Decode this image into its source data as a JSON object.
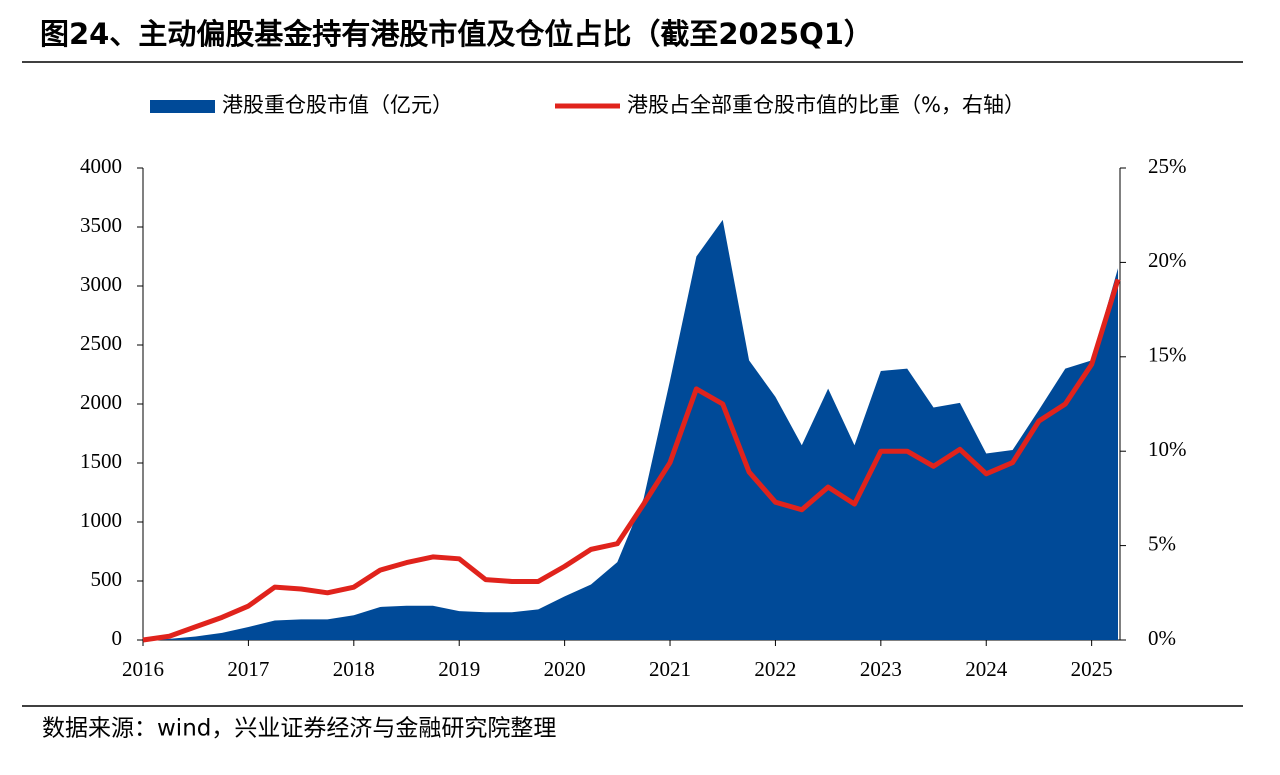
{
  "chart_data": {
    "type": "area-line",
    "title": "图24、主动偏股基金持有港股市值及仓位占比（截至2025Q1）",
    "source": "数据来源：wind，兴业证券经济与金融研究院整理",
    "x": [
      2016,
      2016.25,
      2016.5,
      2016.75,
      2017,
      2017.25,
      2017.5,
      2017.75,
      2018,
      2018.25,
      2018.5,
      2018.75,
      2019,
      2019.25,
      2019.5,
      2019.75,
      2020,
      2020.25,
      2020.5,
      2020.75,
      2021,
      2021.25,
      2021.5,
      2021.75,
      2022,
      2022.25,
      2022.5,
      2022.75,
      2023,
      2023.25,
      2023.5,
      2023.75,
      2024,
      2024.25,
      2024.5,
      2024.75,
      2025,
      2025.25
    ],
    "xlim": [
      2016,
      2025.25
    ],
    "xticks": [
      2016,
      2017,
      2018,
      2019,
      2020,
      2021,
      2022,
      2023,
      2024,
      2025
    ],
    "series": [
      {
        "name": "港股重仓股市值（亿元）",
        "color": "#004a98",
        "kind": "area",
        "values": [
          0,
          10,
          30,
          60,
          110,
          165,
          175,
          175,
          210,
          280,
          290,
          290,
          245,
          235,
          235,
          260,
          370,
          470,
          660,
          1200,
          2200,
          3250,
          3560,
          2370,
          2060,
          1650,
          2130,
          1650,
          2280,
          2300,
          1970,
          2010,
          1580,
          1610,
          1950,
          2300,
          2370,
          3150
        ]
      },
      {
        "name": "港股占全部重仓股市值的比重（%，右轴）",
        "color": "#e0231c",
        "kind": "line",
        "axis": "y2",
        "values": [
          0,
          0.2,
          0.7,
          1.2,
          1.8,
          2.8,
          2.7,
          2.5,
          2.8,
          3.7,
          4.1,
          4.4,
          4.3,
          3.2,
          3.1,
          3.1,
          3.9,
          4.8,
          5.1,
          7.2,
          9.4,
          13.3,
          12.5,
          8.9,
          7.3,
          6.9,
          8.1,
          7.2,
          10.0,
          10.0,
          9.2,
          10.1,
          8.8,
          9.4,
          11.6,
          12.5,
          14.6,
          19.1
        ]
      }
    ],
    "ylim": [
      0,
      4000
    ],
    "yticks": [
      0,
      500,
      1000,
      1500,
      2000,
      2500,
      3000,
      3500,
      4000
    ],
    "y2lim": [
      0,
      25
    ],
    "y2ticks": [
      {
        "value": 0,
        "label": "0%"
      },
      {
        "value": 5,
        "label": "5%"
      },
      {
        "value": 10,
        "label": "10%"
      },
      {
        "value": 15,
        "label": "15%"
      },
      {
        "value": 20,
        "label": "20%"
      },
      {
        "value": 25,
        "label": "25%"
      }
    ],
    "grid": false
  }
}
